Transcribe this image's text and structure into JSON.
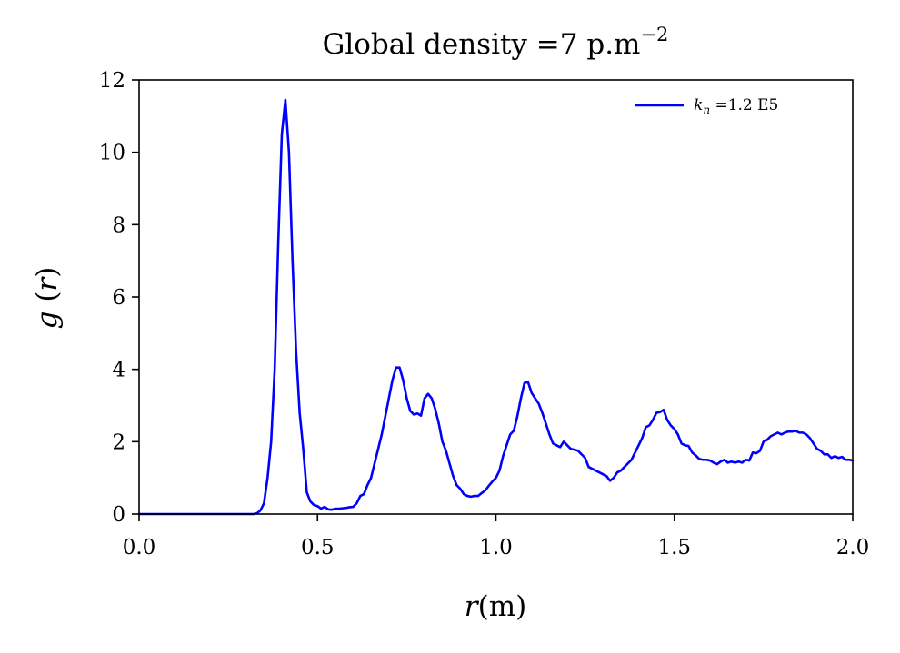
{
  "chart_data": {
    "type": "line",
    "title": "Global density =7 p.m",
    "title_superscript": "−2",
    "xlabel_var": "r",
    "xlabel_unit": "(m)",
    "ylabel_var": "g",
    "ylabel_arg": "r",
    "xlim": [
      0.0,
      2.0
    ],
    "ylim": [
      0,
      12
    ],
    "xticks": [
      0.0,
      0.5,
      1.0,
      1.5,
      2.0
    ],
    "xtick_labels": [
      "0.0",
      "0.5",
      "1.0",
      "1.5",
      "2.0"
    ],
    "yticks": [
      0,
      2,
      4,
      6,
      8,
      10,
      12
    ],
    "ytick_labels": [
      "0",
      "2",
      "4",
      "6",
      "8",
      "10",
      "12"
    ],
    "grid": false,
    "legend_position": "top-right",
    "series": [
      {
        "name_var": "k",
        "name_sub": "n",
        "name_rest": " =1.2 E5",
        "color": "#0000ff",
        "points": [
          [
            0.0,
            0.0
          ],
          [
            0.05,
            0.0
          ],
          [
            0.1,
            0.0
          ],
          [
            0.15,
            0.0
          ],
          [
            0.2,
            0.0
          ],
          [
            0.25,
            0.0
          ],
          [
            0.3,
            0.0
          ],
          [
            0.32,
            0.0
          ],
          [
            0.33,
            0.02
          ],
          [
            0.34,
            0.1
          ],
          [
            0.35,
            0.3
          ],
          [
            0.36,
            1.0
          ],
          [
            0.37,
            2.0
          ],
          [
            0.38,
            4.0
          ],
          [
            0.39,
            7.5
          ],
          [
            0.4,
            10.5
          ],
          [
            0.41,
            11.45
          ],
          [
            0.42,
            10.0
          ],
          [
            0.43,
            7.0
          ],
          [
            0.44,
            4.5
          ],
          [
            0.45,
            2.8
          ],
          [
            0.46,
            1.8
          ],
          [
            0.47,
            0.6
          ],
          [
            0.48,
            0.35
          ],
          [
            0.49,
            0.25
          ],
          [
            0.5,
            0.22
          ],
          [
            0.51,
            0.15
          ],
          [
            0.52,
            0.2
          ],
          [
            0.53,
            0.13
          ],
          [
            0.54,
            0.12
          ],
          [
            0.55,
            0.15
          ],
          [
            0.56,
            0.15
          ],
          [
            0.57,
            0.16
          ],
          [
            0.58,
            0.17
          ],
          [
            0.59,
            0.19
          ],
          [
            0.6,
            0.2
          ],
          [
            0.61,
            0.3
          ],
          [
            0.62,
            0.5
          ],
          [
            0.63,
            0.55
          ],
          [
            0.64,
            0.8
          ],
          [
            0.65,
            1.0
          ],
          [
            0.66,
            1.4
          ],
          [
            0.67,
            1.8
          ],
          [
            0.68,
            2.2
          ],
          [
            0.69,
            2.7
          ],
          [
            0.7,
            3.2
          ],
          [
            0.71,
            3.7
          ],
          [
            0.72,
            4.05
          ],
          [
            0.73,
            4.05
          ],
          [
            0.74,
            3.7
          ],
          [
            0.75,
            3.2
          ],
          [
            0.76,
            2.85
          ],
          [
            0.77,
            2.75
          ],
          [
            0.78,
            2.78
          ],
          [
            0.79,
            2.72
          ],
          [
            0.8,
            3.2
          ],
          [
            0.81,
            3.32
          ],
          [
            0.82,
            3.2
          ],
          [
            0.83,
            2.9
          ],
          [
            0.84,
            2.5
          ],
          [
            0.85,
            2.0
          ],
          [
            0.86,
            1.75
          ],
          [
            0.87,
            1.4
          ],
          [
            0.88,
            1.05
          ],
          [
            0.89,
            0.8
          ],
          [
            0.9,
            0.7
          ],
          [
            0.91,
            0.55
          ],
          [
            0.92,
            0.5
          ],
          [
            0.93,
            0.48
          ],
          [
            0.94,
            0.5
          ],
          [
            0.95,
            0.5
          ],
          [
            0.96,
            0.58
          ],
          [
            0.97,
            0.65
          ],
          [
            0.98,
            0.78
          ],
          [
            0.99,
            0.9
          ],
          [
            1.0,
            1.0
          ],
          [
            1.01,
            1.2
          ],
          [
            1.02,
            1.6
          ],
          [
            1.03,
            1.9
          ],
          [
            1.04,
            2.2
          ],
          [
            1.05,
            2.3
          ],
          [
            1.06,
            2.7
          ],
          [
            1.07,
            3.2
          ],
          [
            1.08,
            3.62
          ],
          [
            1.09,
            3.65
          ],
          [
            1.1,
            3.35
          ],
          [
            1.11,
            3.2
          ],
          [
            1.12,
            3.05
          ],
          [
            1.13,
            2.8
          ],
          [
            1.14,
            2.5
          ],
          [
            1.15,
            2.2
          ],
          [
            1.16,
            1.95
          ],
          [
            1.17,
            1.9
          ],
          [
            1.18,
            1.85
          ],
          [
            1.19,
            2.0
          ],
          [
            1.2,
            1.9
          ],
          [
            1.21,
            1.8
          ],
          [
            1.22,
            1.78
          ],
          [
            1.23,
            1.75
          ],
          [
            1.24,
            1.65
          ],
          [
            1.25,
            1.55
          ],
          [
            1.26,
            1.3
          ],
          [
            1.27,
            1.25
          ],
          [
            1.28,
            1.2
          ],
          [
            1.29,
            1.15
          ],
          [
            1.3,
            1.1
          ],
          [
            1.31,
            1.05
          ],
          [
            1.32,
            0.92
          ],
          [
            1.33,
            1.0
          ],
          [
            1.34,
            1.15
          ],
          [
            1.35,
            1.2
          ],
          [
            1.36,
            1.3
          ],
          [
            1.37,
            1.4
          ],
          [
            1.38,
            1.5
          ],
          [
            1.39,
            1.7
          ],
          [
            1.4,
            1.9
          ],
          [
            1.41,
            2.1
          ],
          [
            1.42,
            2.4
          ],
          [
            1.43,
            2.45
          ],
          [
            1.44,
            2.6
          ],
          [
            1.45,
            2.8
          ],
          [
            1.46,
            2.82
          ],
          [
            1.47,
            2.88
          ],
          [
            1.48,
            2.6
          ],
          [
            1.49,
            2.45
          ],
          [
            1.5,
            2.35
          ],
          [
            1.51,
            2.2
          ],
          [
            1.52,
            1.95
          ],
          [
            1.53,
            1.9
          ],
          [
            1.54,
            1.88
          ],
          [
            1.55,
            1.7
          ],
          [
            1.56,
            1.62
          ],
          [
            1.57,
            1.52
          ],
          [
            1.58,
            1.5
          ],
          [
            1.59,
            1.5
          ],
          [
            1.6,
            1.48
          ],
          [
            1.61,
            1.42
          ],
          [
            1.62,
            1.38
          ],
          [
            1.63,
            1.45
          ],
          [
            1.64,
            1.5
          ],
          [
            1.65,
            1.42
          ],
          [
            1.66,
            1.45
          ],
          [
            1.67,
            1.42
          ],
          [
            1.68,
            1.45
          ],
          [
            1.69,
            1.42
          ],
          [
            1.7,
            1.5
          ],
          [
            1.71,
            1.48
          ],
          [
            1.72,
            1.7
          ],
          [
            1.73,
            1.68
          ],
          [
            1.74,
            1.75
          ],
          [
            1.75,
            2.0
          ],
          [
            1.76,
            2.05
          ],
          [
            1.77,
            2.15
          ],
          [
            1.78,
            2.2
          ],
          [
            1.79,
            2.25
          ],
          [
            1.8,
            2.2
          ],
          [
            1.81,
            2.25
          ],
          [
            1.82,
            2.28
          ],
          [
            1.83,
            2.28
          ],
          [
            1.84,
            2.3
          ],
          [
            1.85,
            2.25
          ],
          [
            1.86,
            2.25
          ],
          [
            1.87,
            2.2
          ],
          [
            1.88,
            2.1
          ],
          [
            1.89,
            1.95
          ],
          [
            1.9,
            1.8
          ],
          [
            1.91,
            1.75
          ],
          [
            1.92,
            1.65
          ],
          [
            1.93,
            1.65
          ],
          [
            1.94,
            1.55
          ],
          [
            1.95,
            1.6
          ],
          [
            1.96,
            1.55
          ],
          [
            1.97,
            1.58
          ],
          [
            1.98,
            1.5
          ],
          [
            1.99,
            1.5
          ],
          [
            2.0,
            1.48
          ]
        ]
      }
    ]
  }
}
